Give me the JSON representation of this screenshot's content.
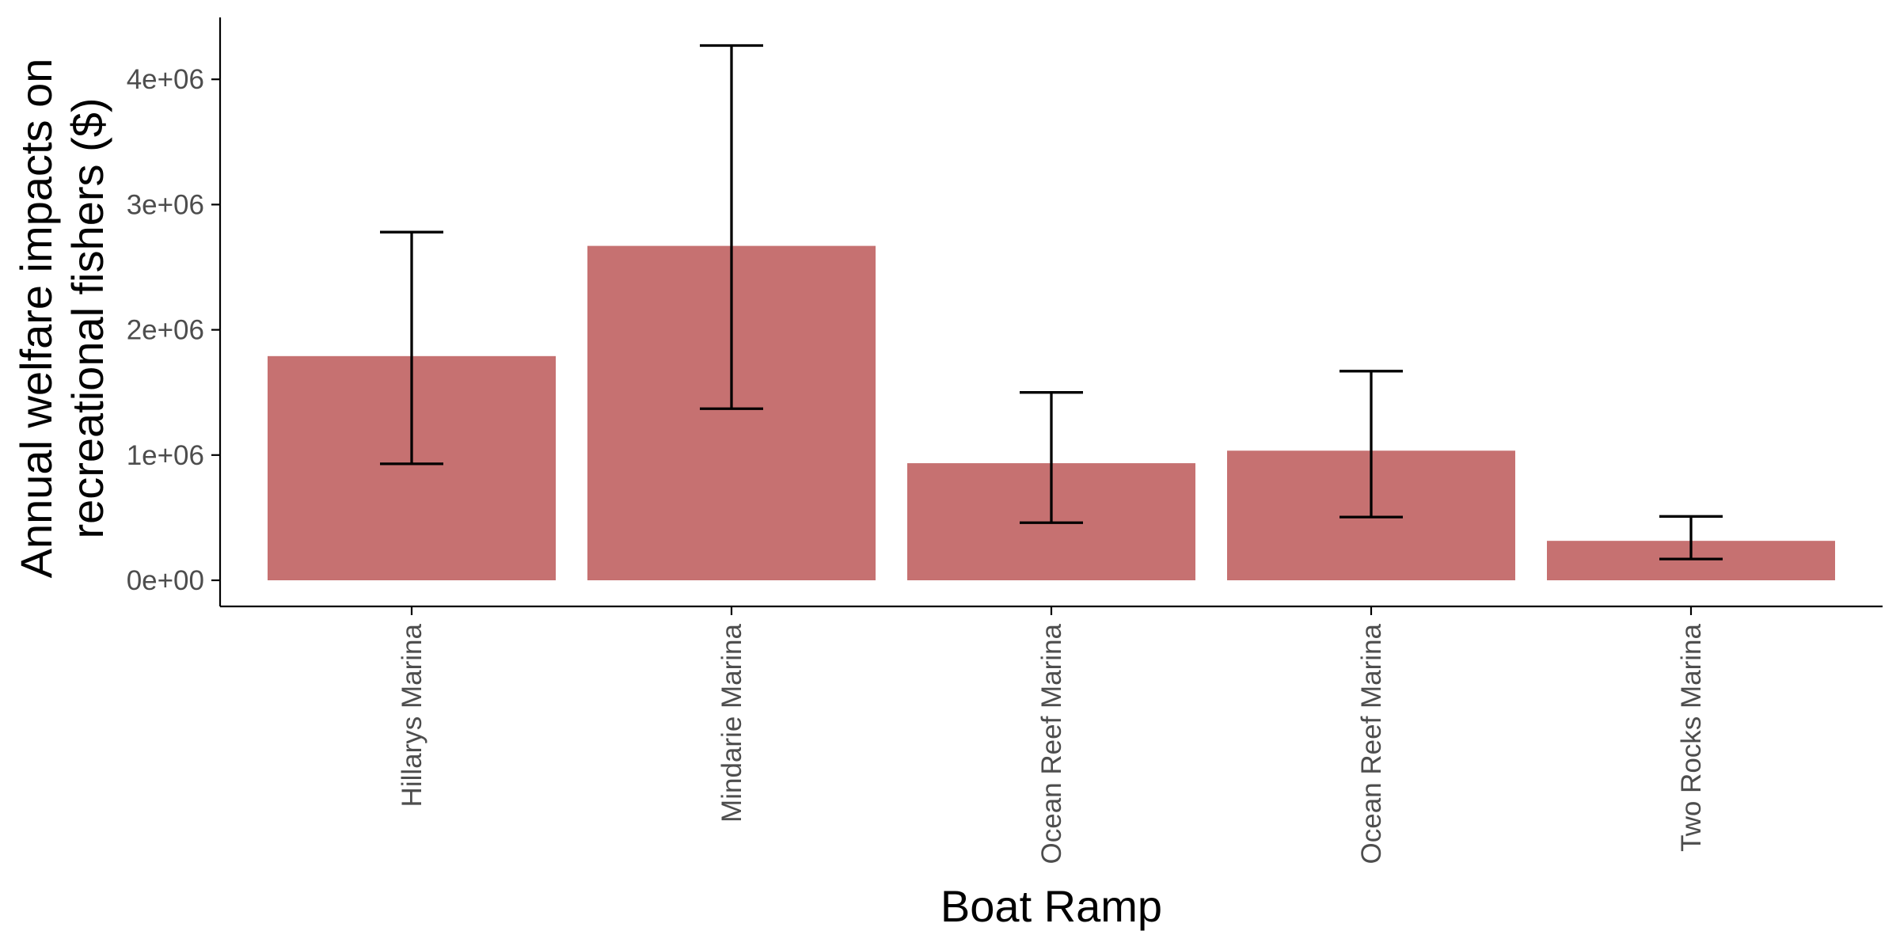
{
  "chart_data": {
    "type": "bar",
    "title": "",
    "xlabel": "Boat Ramp",
    "ylabel": [
      "Annual welfare impacts on",
      "recreational fishers ($)"
    ],
    "categories": [
      "Hillarys Marina",
      "Mindarie Marina",
      "Ocean Reef Marina",
      "Ocean Reef Marina",
      "Two Rocks Marina"
    ],
    "values": [
      1790000,
      2670000,
      935000,
      1035000,
      315000
    ],
    "error_low": [
      930000,
      1370000,
      460000,
      505000,
      170000
    ],
    "error_high": [
      2780000,
      4270000,
      1500000,
      1670000,
      510000
    ],
    "ylim": [
      0,
      4300000
    ],
    "yticks": [
      0,
      1000000,
      2000000,
      3000000,
      4000000
    ],
    "ytick_labels": [
      "0e+00",
      "1e+06",
      "2e+06",
      "3e+06",
      "4e+06"
    ],
    "grid": false,
    "bar_color": "#c67171",
    "errorbar_color": "#000000",
    "axis_color": "#000000"
  }
}
